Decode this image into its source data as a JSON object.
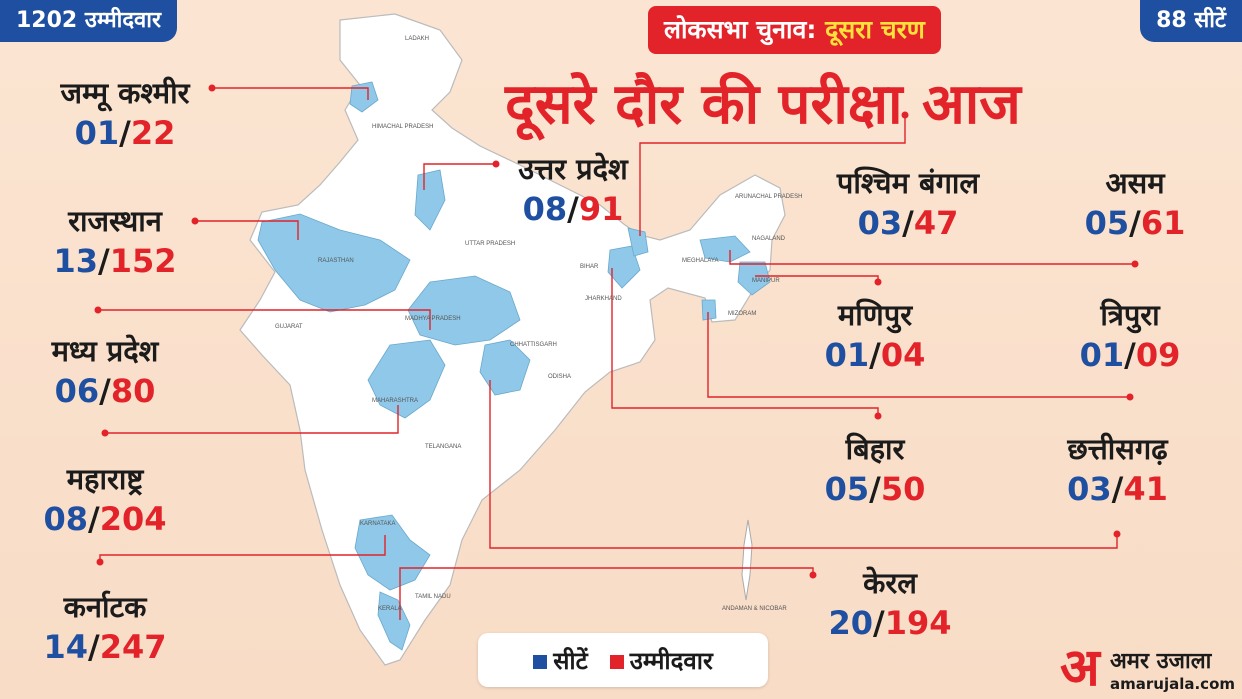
{
  "header": {
    "candidates_total": "1202 उम्मीदवार",
    "seats_total": "88 सीटें",
    "banner_prefix": "लोकसभा चुनाव:",
    "banner_highlight": "दूसरा चरण",
    "title": "दूसरे दौर की परीक्षा आज"
  },
  "states": [
    {
      "name": "जम्मू कश्मीर",
      "seats": "01",
      "candidates": "22"
    },
    {
      "name": "राजस्थान",
      "seats": "13",
      "candidates": "152"
    },
    {
      "name": "मध्य प्रदेश",
      "seats": "06",
      "candidates": "80"
    },
    {
      "name": "महाराष्ट्र",
      "seats": "08",
      "candidates": "204"
    },
    {
      "name": "कर्नाटक",
      "seats": "14",
      "candidates": "247"
    },
    {
      "name": "उत्तर प्रदेश",
      "seats": "08",
      "candidates": "91"
    },
    {
      "name": "पश्चिम बंगाल",
      "seats": "03",
      "candidates": "47"
    },
    {
      "name": "असम",
      "seats": "05",
      "candidates": "61"
    },
    {
      "name": "मणिपुर",
      "seats": "01",
      "candidates": "04"
    },
    {
      "name": "त्रिपुरा",
      "seats": "01",
      "candidates": "09"
    },
    {
      "name": "बिहार",
      "seats": "05",
      "candidates": "50"
    },
    {
      "name": "छत्तीसगढ़",
      "seats": "03",
      "candidates": "41"
    },
    {
      "name": "केरल",
      "seats": "20",
      "candidates": "194"
    }
  ],
  "legend": {
    "seats_label": "सीटें",
    "candidates_label": "उम्मीदवार",
    "seats_color": "#1f4fa0",
    "candidates_color": "#e2232a"
  },
  "map": {
    "highlight_color": "#8fc8e8",
    "base_color": "#ffffff",
    "state_labels": [
      "LADAKH",
      "HIMACHAL PRADESH",
      "RAJASTHAN",
      "UTTAR PRADESH",
      "GUJARAT",
      "MADHYA PRADESH",
      "MAHARASHTRA",
      "TELANGANA",
      "KARNATAKA",
      "TAMIL NADU",
      "KERALA",
      "CHHATTISGARH",
      "ODISHA",
      "ARUNACHAL PRADESH",
      "NAGALAND",
      "MEGHALAYA",
      "MANIPUR",
      "MIZORAM",
      "BIHAR",
      "JHARKHAND",
      "ANDAMAN & NICOBAR"
    ]
  },
  "logo": {
    "mark": "अ",
    "brand": "अमर उजाला",
    "site": "amarujala.com"
  }
}
